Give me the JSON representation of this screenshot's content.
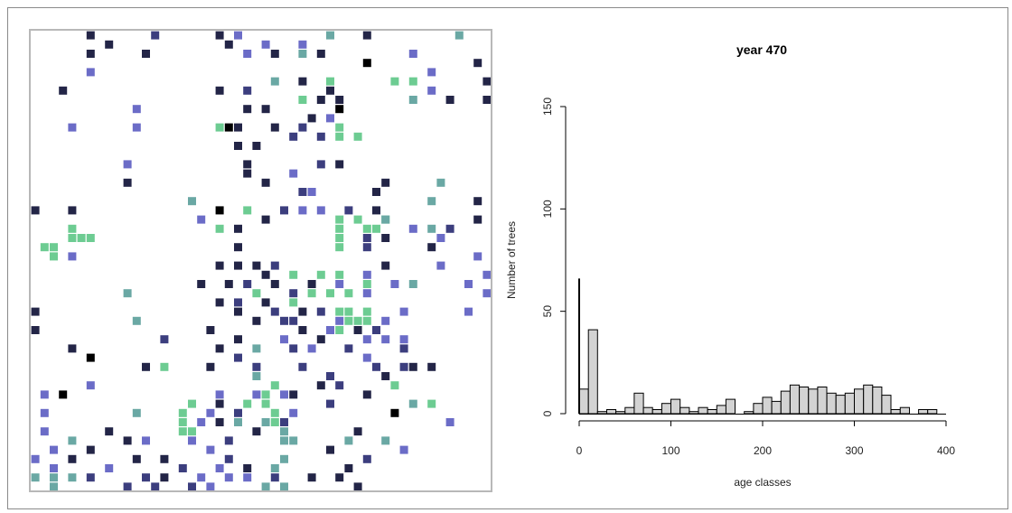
{
  "palette": {
    "black": "#000000",
    "navy": "#232547",
    "indigo": "#3c3e7e",
    "blue": "#6b6cc7",
    "teal": "#6aa8a4",
    "green": "#6dcc92",
    "bar_fill": "#d3d3d3",
    "bar_stroke": "#000000"
  },
  "grid_map": {
    "size": 50,
    "cells": [
      [
        6,
        0,
        "navy"
      ],
      [
        13,
        0,
        "indigo"
      ],
      [
        20,
        0,
        "navy"
      ],
      [
        22,
        0,
        "blue"
      ],
      [
        32,
        0,
        "teal"
      ],
      [
        36,
        0,
        "navy"
      ],
      [
        46,
        0,
        "teal"
      ],
      [
        8,
        1,
        "navy"
      ],
      [
        21,
        1,
        "navy"
      ],
      [
        25,
        1,
        "blue"
      ],
      [
        29,
        1,
        "blue"
      ],
      [
        6,
        2,
        "navy"
      ],
      [
        12,
        2,
        "navy"
      ],
      [
        23,
        2,
        "blue"
      ],
      [
        26,
        2,
        "navy"
      ],
      [
        29,
        2,
        "teal"
      ],
      [
        31,
        2,
        "navy"
      ],
      [
        41,
        2,
        "blue"
      ],
      [
        36,
        3,
        "black"
      ],
      [
        48,
        3,
        "navy"
      ],
      [
        6,
        4,
        "blue"
      ],
      [
        43,
        4,
        "blue"
      ],
      [
        26,
        5,
        "teal"
      ],
      [
        29,
        5,
        "navy"
      ],
      [
        32,
        5,
        "green"
      ],
      [
        39,
        5,
        "green"
      ],
      [
        41,
        5,
        "green"
      ],
      [
        49,
        5,
        "navy"
      ],
      [
        3,
        6,
        "navy"
      ],
      [
        20,
        6,
        "navy"
      ],
      [
        23,
        6,
        "indigo"
      ],
      [
        32,
        6,
        "navy"
      ],
      [
        43,
        6,
        "blue"
      ],
      [
        29,
        7,
        "green"
      ],
      [
        31,
        7,
        "navy"
      ],
      [
        33,
        7,
        "navy"
      ],
      [
        41,
        7,
        "teal"
      ],
      [
        45,
        7,
        "navy"
      ],
      [
        49,
        7,
        "navy"
      ],
      [
        11,
        8,
        "blue"
      ],
      [
        23,
        8,
        "navy"
      ],
      [
        25,
        8,
        "navy"
      ],
      [
        33,
        8,
        "black"
      ],
      [
        30,
        9,
        "navy"
      ],
      [
        32,
        9,
        "blue"
      ],
      [
        4,
        10,
        "blue"
      ],
      [
        11,
        10,
        "blue"
      ],
      [
        20,
        10,
        "green"
      ],
      [
        21,
        10,
        "black"
      ],
      [
        22,
        10,
        "navy"
      ],
      [
        26,
        10,
        "navy"
      ],
      [
        29,
        10,
        "indigo"
      ],
      [
        33,
        10,
        "green"
      ],
      [
        28,
        11,
        "indigo"
      ],
      [
        31,
        11,
        "indigo"
      ],
      [
        33,
        11,
        "green"
      ],
      [
        35,
        11,
        "green"
      ],
      [
        22,
        12,
        "navy"
      ],
      [
        24,
        12,
        "navy"
      ],
      [
        10,
        14,
        "blue"
      ],
      [
        23,
        14,
        "navy"
      ],
      [
        31,
        14,
        "indigo"
      ],
      [
        33,
        14,
        "navy"
      ],
      [
        23,
        15,
        "navy"
      ],
      [
        28,
        15,
        "blue"
      ],
      [
        10,
        16,
        "navy"
      ],
      [
        25,
        16,
        "navy"
      ],
      [
        38,
        16,
        "navy"
      ],
      [
        44,
        16,
        "teal"
      ],
      [
        29,
        17,
        "indigo"
      ],
      [
        30,
        17,
        "blue"
      ],
      [
        37,
        17,
        "navy"
      ],
      [
        17,
        18,
        "teal"
      ],
      [
        43,
        18,
        "teal"
      ],
      [
        48,
        18,
        "navy"
      ],
      [
        0,
        19,
        "navy"
      ],
      [
        4,
        19,
        "navy"
      ],
      [
        20,
        19,
        "black"
      ],
      [
        23,
        19,
        "green"
      ],
      [
        27,
        19,
        "indigo"
      ],
      [
        29,
        19,
        "blue"
      ],
      [
        31,
        19,
        "blue"
      ],
      [
        34,
        19,
        "indigo"
      ],
      [
        37,
        19,
        "navy"
      ],
      [
        18,
        20,
        "blue"
      ],
      [
        25,
        20,
        "navy"
      ],
      [
        33,
        20,
        "green"
      ],
      [
        35,
        20,
        "green"
      ],
      [
        38,
        20,
        "green"
      ],
      [
        38,
        20,
        "teal"
      ],
      [
        48,
        20,
        "navy"
      ],
      [
        4,
        21,
        "green"
      ],
      [
        20,
        21,
        "green"
      ],
      [
        22,
        21,
        "navy"
      ],
      [
        33,
        21,
        "green"
      ],
      [
        36,
        21,
        "green"
      ],
      [
        37,
        21,
        "green"
      ],
      [
        41,
        21,
        "blue"
      ],
      [
        43,
        21,
        "teal"
      ],
      [
        45,
        21,
        "indigo"
      ],
      [
        4,
        22,
        "green"
      ],
      [
        5,
        22,
        "green"
      ],
      [
        6,
        22,
        "green"
      ],
      [
        33,
        22,
        "green"
      ],
      [
        36,
        22,
        "indigo"
      ],
      [
        38,
        22,
        "navy"
      ],
      [
        44,
        22,
        "blue"
      ],
      [
        1,
        23,
        "green"
      ],
      [
        2,
        23,
        "green"
      ],
      [
        22,
        23,
        "navy"
      ],
      [
        33,
        23,
        "green"
      ],
      [
        36,
        23,
        "indigo"
      ],
      [
        43,
        23,
        "navy"
      ],
      [
        2,
        24,
        "green"
      ],
      [
        4,
        24,
        "blue"
      ],
      [
        48,
        24,
        "blue"
      ],
      [
        20,
        25,
        "navy"
      ],
      [
        22,
        25,
        "navy"
      ],
      [
        24,
        25,
        "navy"
      ],
      [
        26,
        25,
        "indigo"
      ],
      [
        38,
        25,
        "navy"
      ],
      [
        44,
        25,
        "blue"
      ],
      [
        25,
        26,
        "navy"
      ],
      [
        28,
        26,
        "green"
      ],
      [
        31,
        26,
        "green"
      ],
      [
        33,
        26,
        "green"
      ],
      [
        36,
        26,
        "blue"
      ],
      [
        49,
        26,
        "blue"
      ],
      [
        18,
        27,
        "navy"
      ],
      [
        21,
        27,
        "navy"
      ],
      [
        23,
        27,
        "indigo"
      ],
      [
        26,
        27,
        "navy"
      ],
      [
        30,
        27,
        "navy"
      ],
      [
        33,
        27,
        "blue"
      ],
      [
        36,
        27,
        "green"
      ],
      [
        39,
        27,
        "blue"
      ],
      [
        41,
        27,
        "teal"
      ],
      [
        47,
        27,
        "blue"
      ],
      [
        10,
        28,
        "teal"
      ],
      [
        24,
        28,
        "green"
      ],
      [
        28,
        28,
        "indigo"
      ],
      [
        30,
        28,
        "green"
      ],
      [
        32,
        28,
        "green"
      ],
      [
        34,
        28,
        "green"
      ],
      [
        36,
        28,
        "blue"
      ],
      [
        49,
        28,
        "blue"
      ],
      [
        20,
        29,
        "navy"
      ],
      [
        22,
        29,
        "indigo"
      ],
      [
        25,
        29,
        "navy"
      ],
      [
        28,
        29,
        "green"
      ],
      [
        0,
        30,
        "navy"
      ],
      [
        22,
        30,
        "navy"
      ],
      [
        26,
        30,
        "indigo"
      ],
      [
        29,
        30,
        "navy"
      ],
      [
        31,
        30,
        "indigo"
      ],
      [
        33,
        30,
        "green"
      ],
      [
        34,
        30,
        "green"
      ],
      [
        36,
        30,
        "green"
      ],
      [
        40,
        30,
        "blue"
      ],
      [
        47,
        30,
        "blue"
      ],
      [
        11,
        31,
        "teal"
      ],
      [
        24,
        31,
        "navy"
      ],
      [
        27,
        31,
        "indigo"
      ],
      [
        28,
        31,
        "indigo"
      ],
      [
        33,
        31,
        "blue"
      ],
      [
        34,
        31,
        "green"
      ],
      [
        35,
        31,
        "green"
      ],
      [
        36,
        31,
        "green"
      ],
      [
        38,
        31,
        "blue"
      ],
      [
        0,
        32,
        "navy"
      ],
      [
        19,
        32,
        "navy"
      ],
      [
        29,
        32,
        "navy"
      ],
      [
        32,
        32,
        "blue"
      ],
      [
        33,
        32,
        "green"
      ],
      [
        35,
        32,
        "navy"
      ],
      [
        37,
        32,
        "indigo"
      ],
      [
        14,
        33,
        "indigo"
      ],
      [
        22,
        33,
        "navy"
      ],
      [
        27,
        33,
        "blue"
      ],
      [
        31,
        33,
        "navy"
      ],
      [
        36,
        33,
        "blue"
      ],
      [
        38,
        33,
        "blue"
      ],
      [
        40,
        33,
        "blue"
      ],
      [
        4,
        34,
        "navy"
      ],
      [
        20,
        34,
        "navy"
      ],
      [
        24,
        34,
        "teal"
      ],
      [
        28,
        34,
        "indigo"
      ],
      [
        30,
        34,
        "blue"
      ],
      [
        34,
        34,
        "indigo"
      ],
      [
        40,
        34,
        "indigo"
      ],
      [
        6,
        35,
        "black"
      ],
      [
        22,
        35,
        "indigo"
      ],
      [
        36,
        35,
        "blue"
      ],
      [
        12,
        36,
        "navy"
      ],
      [
        14,
        36,
        "green"
      ],
      [
        19,
        36,
        "navy"
      ],
      [
        24,
        36,
        "indigo"
      ],
      [
        29,
        36,
        "indigo"
      ],
      [
        37,
        36,
        "indigo"
      ],
      [
        40,
        36,
        "indigo"
      ],
      [
        41,
        36,
        "navy"
      ],
      [
        43,
        36,
        "navy"
      ],
      [
        24,
        37,
        "teal"
      ],
      [
        32,
        37,
        "indigo"
      ],
      [
        38,
        37,
        "navy"
      ],
      [
        6,
        38,
        "blue"
      ],
      [
        26,
        38,
        "green"
      ],
      [
        31,
        38,
        "navy"
      ],
      [
        33,
        38,
        "indigo"
      ],
      [
        39,
        38,
        "green"
      ],
      [
        1,
        39,
        "blue"
      ],
      [
        3,
        39,
        "black"
      ],
      [
        20,
        39,
        "blue"
      ],
      [
        24,
        39,
        "blue"
      ],
      [
        25,
        39,
        "green"
      ],
      [
        27,
        39,
        "blue"
      ],
      [
        28,
        39,
        "navy"
      ],
      [
        36,
        39,
        "navy"
      ],
      [
        17,
        40,
        "green"
      ],
      [
        20,
        40,
        "navy"
      ],
      [
        23,
        40,
        "green"
      ],
      [
        25,
        40,
        "green"
      ],
      [
        32,
        40,
        "indigo"
      ],
      [
        41,
        40,
        "teal"
      ],
      [
        43,
        40,
        "green"
      ],
      [
        1,
        41,
        "blue"
      ],
      [
        11,
        41,
        "teal"
      ],
      [
        16,
        41,
        "green"
      ],
      [
        19,
        41,
        "blue"
      ],
      [
        22,
        41,
        "indigo"
      ],
      [
        26,
        41,
        "green"
      ],
      [
        28,
        41,
        "blue"
      ],
      [
        39,
        41,
        "black"
      ],
      [
        16,
        42,
        "green"
      ],
      [
        18,
        42,
        "blue"
      ],
      [
        20,
        42,
        "navy"
      ],
      [
        22,
        42,
        "teal"
      ],
      [
        25,
        42,
        "teal"
      ],
      [
        26,
        42,
        "green"
      ],
      [
        27,
        42,
        "indigo"
      ],
      [
        45,
        42,
        "blue"
      ],
      [
        1,
        43,
        "blue"
      ],
      [
        8,
        43,
        "navy"
      ],
      [
        16,
        43,
        "green"
      ],
      [
        17,
        43,
        "green"
      ],
      [
        24,
        43,
        "navy"
      ],
      [
        27,
        43,
        "teal"
      ],
      [
        35,
        43,
        "navy"
      ],
      [
        4,
        44,
        "teal"
      ],
      [
        10,
        44,
        "navy"
      ],
      [
        12,
        44,
        "blue"
      ],
      [
        17,
        44,
        "blue"
      ],
      [
        21,
        44,
        "indigo"
      ],
      [
        27,
        44,
        "teal"
      ],
      [
        28,
        44,
        "teal"
      ],
      [
        34,
        44,
        "teal"
      ],
      [
        38,
        44,
        "teal"
      ],
      [
        2,
        45,
        "blue"
      ],
      [
        6,
        45,
        "navy"
      ],
      [
        19,
        45,
        "blue"
      ],
      [
        32,
        45,
        "navy"
      ],
      [
        40,
        45,
        "blue"
      ],
      [
        0,
        46,
        "blue"
      ],
      [
        4,
        46,
        "navy"
      ],
      [
        11,
        46,
        "navy"
      ],
      [
        14,
        46,
        "navy"
      ],
      [
        21,
        46,
        "indigo"
      ],
      [
        27,
        46,
        "teal"
      ],
      [
        36,
        46,
        "indigo"
      ],
      [
        2,
        47,
        "blue"
      ],
      [
        8,
        47,
        "blue"
      ],
      [
        16,
        47,
        "indigo"
      ],
      [
        20,
        47,
        "blue"
      ],
      [
        23,
        47,
        "navy"
      ],
      [
        26,
        47,
        "teal"
      ],
      [
        34,
        47,
        "navy"
      ],
      [
        0,
        48,
        "teal"
      ],
      [
        2,
        48,
        "teal"
      ],
      [
        4,
        48,
        "teal"
      ],
      [
        6,
        48,
        "indigo"
      ],
      [
        12,
        48,
        "indigo"
      ],
      [
        14,
        48,
        "navy"
      ],
      [
        18,
        48,
        "blue"
      ],
      [
        21,
        48,
        "blue"
      ],
      [
        23,
        48,
        "blue"
      ],
      [
        26,
        48,
        "indigo"
      ],
      [
        30,
        48,
        "navy"
      ],
      [
        33,
        48,
        "navy"
      ],
      [
        2,
        49,
        "teal"
      ],
      [
        10,
        49,
        "indigo"
      ],
      [
        13,
        49,
        "indigo"
      ],
      [
        17,
        49,
        "indigo"
      ],
      [
        19,
        49,
        "blue"
      ],
      [
        25,
        49,
        "teal"
      ],
      [
        27,
        49,
        "teal"
      ],
      [
        35,
        49,
        "navy"
      ]
    ]
  },
  "chart_data": {
    "type": "bar",
    "title": "year 470",
    "xlabel": "age classes",
    "ylabel": "Number of trees",
    "xlim": [
      0,
      400
    ],
    "ylim": [
      0,
      150
    ],
    "xticks": [
      "0",
      "100",
      "200",
      "300",
      "400"
    ],
    "yticks": [
      "0",
      "50",
      "100",
      "150"
    ],
    "bin_width": 10,
    "bin_starts": [
      0,
      10,
      20,
      30,
      40,
      50,
      60,
      70,
      80,
      90,
      100,
      110,
      120,
      130,
      140,
      150,
      160,
      170,
      180,
      190,
      200,
      210,
      220,
      230,
      240,
      250,
      260,
      270,
      280,
      290,
      300,
      310,
      320,
      330,
      340,
      350,
      360,
      370,
      380,
      390
    ],
    "values": [
      12,
      41,
      1,
      2,
      1,
      3,
      10,
      3,
      2,
      5,
      7,
      3,
      1,
      3,
      2,
      4,
      7,
      0,
      1,
      5,
      8,
      6,
      11,
      14,
      13,
      12,
      13,
      10,
      9,
      10,
      12,
      14,
      13,
      9,
      2,
      3,
      0,
      2,
      2,
      0
    ],
    "spike": {
      "x": 0,
      "value": 66
    }
  }
}
